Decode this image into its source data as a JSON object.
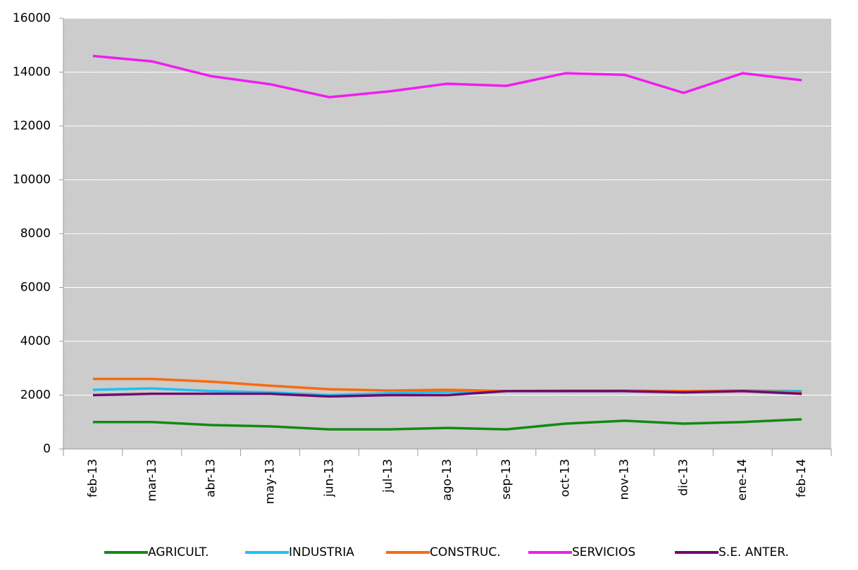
{
  "chart_data": {
    "type": "line",
    "categories": [
      "feb-13",
      "mar-13",
      "abr-13",
      "may-13",
      "jun-13",
      "jul-13",
      "ago-13",
      "sep-13",
      "oct-13",
      "nov-13",
      "dic-13",
      "ene-14",
      "feb-14"
    ],
    "series": [
      {
        "name": "AGRICULT.",
        "color": "#138a13",
        "values": [
          1000,
          1000,
          890,
          840,
          730,
          730,
          780,
          730,
          940,
          1050,
          940,
          1000,
          1100
        ]
      },
      {
        "name": "INDUSTRIA",
        "color": "#1ec0f0",
        "values": [
          2200,
          2250,
          2150,
          2100,
          2000,
          2070,
          2120,
          2150,
          2170,
          2170,
          2150,
          2170,
          2150
        ]
      },
      {
        "name": "CONSTRUC.",
        "color": "#f76b0f",
        "values": [
          2600,
          2600,
          2500,
          2350,
          2220,
          2170,
          2200,
          2150,
          2150,
          2150,
          2150,
          2150,
          2100
        ]
      },
      {
        "name": "SERVICIOS",
        "color": "#f01df0",
        "values": [
          14600,
          14400,
          13850,
          13550,
          13070,
          13280,
          13570,
          13490,
          13960,
          13900,
          13230,
          13960,
          13700
        ]
      },
      {
        "name": "S.E. ANTER.",
        "color": "#6f0c6f",
        "values": [
          2000,
          2050,
          2050,
          2050,
          1950,
          2000,
          2000,
          2150,
          2150,
          2150,
          2100,
          2150,
          2050
        ]
      }
    ],
    "ylim": [
      0,
      16000
    ],
    "yticks": [
      0,
      2000,
      4000,
      6000,
      8000,
      10000,
      12000,
      14000,
      16000
    ],
    "grid": true,
    "legend": "bottom"
  }
}
